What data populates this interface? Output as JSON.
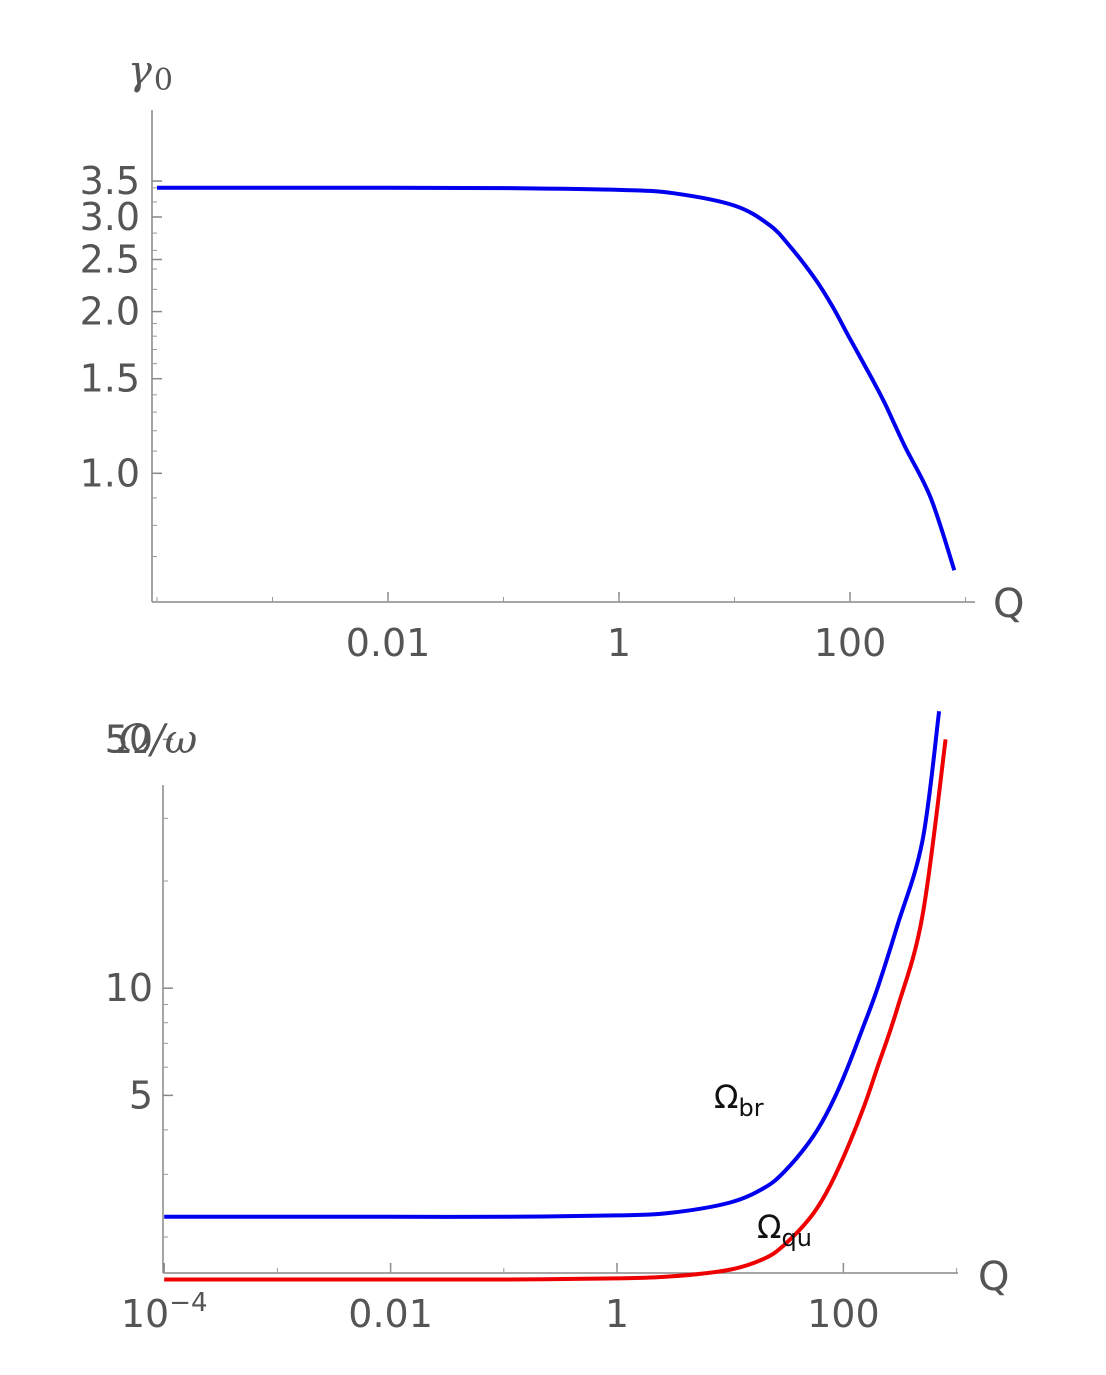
{
  "chart_data": [
    {
      "type": "line",
      "xlabel": "Q",
      "ylabel": "γ0",
      "ylabel_main": "γ",
      "ylabel_sub": "0",
      "x_scale": "log",
      "y_scale": "log",
      "xlim": [
        0.0001,
        1000
      ],
      "ylim": [
        0.63,
        3.6
      ],
      "x_ticks": [
        {
          "value": 0.01,
          "label": "0.01"
        },
        {
          "value": 1,
          "label": "1"
        },
        {
          "value": 100,
          "label": "100"
        }
      ],
      "y_ticks": [
        {
          "value": 1.0,
          "label": "1.0"
        },
        {
          "value": 1.5,
          "label": "1.5"
        },
        {
          "value": 2.0,
          "label": "2.0"
        },
        {
          "value": 2.5,
          "label": "2.5"
        },
        {
          "value": 3.0,
          "label": "3.0"
        },
        {
          "value": 3.5,
          "label": "3.5"
        }
      ],
      "grid": false,
      "series": [
        {
          "color": "#0000ee",
          "x": [
            0.0001,
            0.001,
            0.01,
            0.1,
            1,
            3,
            10,
            20,
            30,
            50,
            70,
            100,
            150,
            200,
            300,
            500,
            800
          ],
          "y": [
            3.4,
            3.4,
            3.4,
            3.395,
            3.37,
            3.32,
            3.15,
            2.9,
            2.65,
            2.3,
            2.05,
            1.78,
            1.52,
            1.35,
            1.12,
            0.9,
            0.66
          ]
        }
      ]
    },
    {
      "type": "line",
      "xlabel": "Q",
      "ylabel": "Ω/ω",
      "x_scale": "log",
      "y_scale": "log",
      "xlim": [
        0.0001,
        1000
      ],
      "ylim": [
        0.9,
        60
      ],
      "x_ticks": [
        {
          "value": 0.0001,
          "label": "10",
          "sup": "−4"
        },
        {
          "value": 0.01,
          "label": "0.01"
        },
        {
          "value": 1,
          "label": "1"
        },
        {
          "value": 100,
          "label": "100"
        }
      ],
      "y_ticks": [
        {
          "value": 5,
          "label": "5"
        },
        {
          "value": 10,
          "label": "10"
        },
        {
          "value": 50,
          "label": "50"
        }
      ],
      "grid": false,
      "series": [
        {
          "name": "Ωbr",
          "name_main": "Ω",
          "name_sub": "br",
          "color": "#0000ee",
          "x": [
            0.0001,
            0.001,
            0.01,
            0.1,
            1,
            3,
            10,
            20,
            30,
            50,
            70,
            100,
            150,
            200,
            300,
            500,
            700
          ],
          "y": [
            2.28,
            2.28,
            2.28,
            2.28,
            2.3,
            2.34,
            2.5,
            2.75,
            3.05,
            3.7,
            4.4,
            5.6,
            7.8,
            10.0,
            15.0,
            26.0,
            60.0
          ]
        },
        {
          "name": "Ωqu",
          "name_main": "Ω",
          "name_sub": "qu",
          "color": "#ee0000",
          "x": [
            0.0001,
            0.001,
            0.01,
            0.1,
            1,
            3,
            10,
            20,
            30,
            50,
            70,
            100,
            150,
            200,
            300,
            500,
            800
          ],
          "y": [
            1.52,
            1.52,
            1.52,
            1.52,
            1.53,
            1.55,
            1.62,
            1.74,
            1.9,
            2.25,
            2.65,
            3.35,
            4.6,
            6.0,
            8.8,
            16.0,
            50.0
          ]
        }
      ]
    }
  ]
}
